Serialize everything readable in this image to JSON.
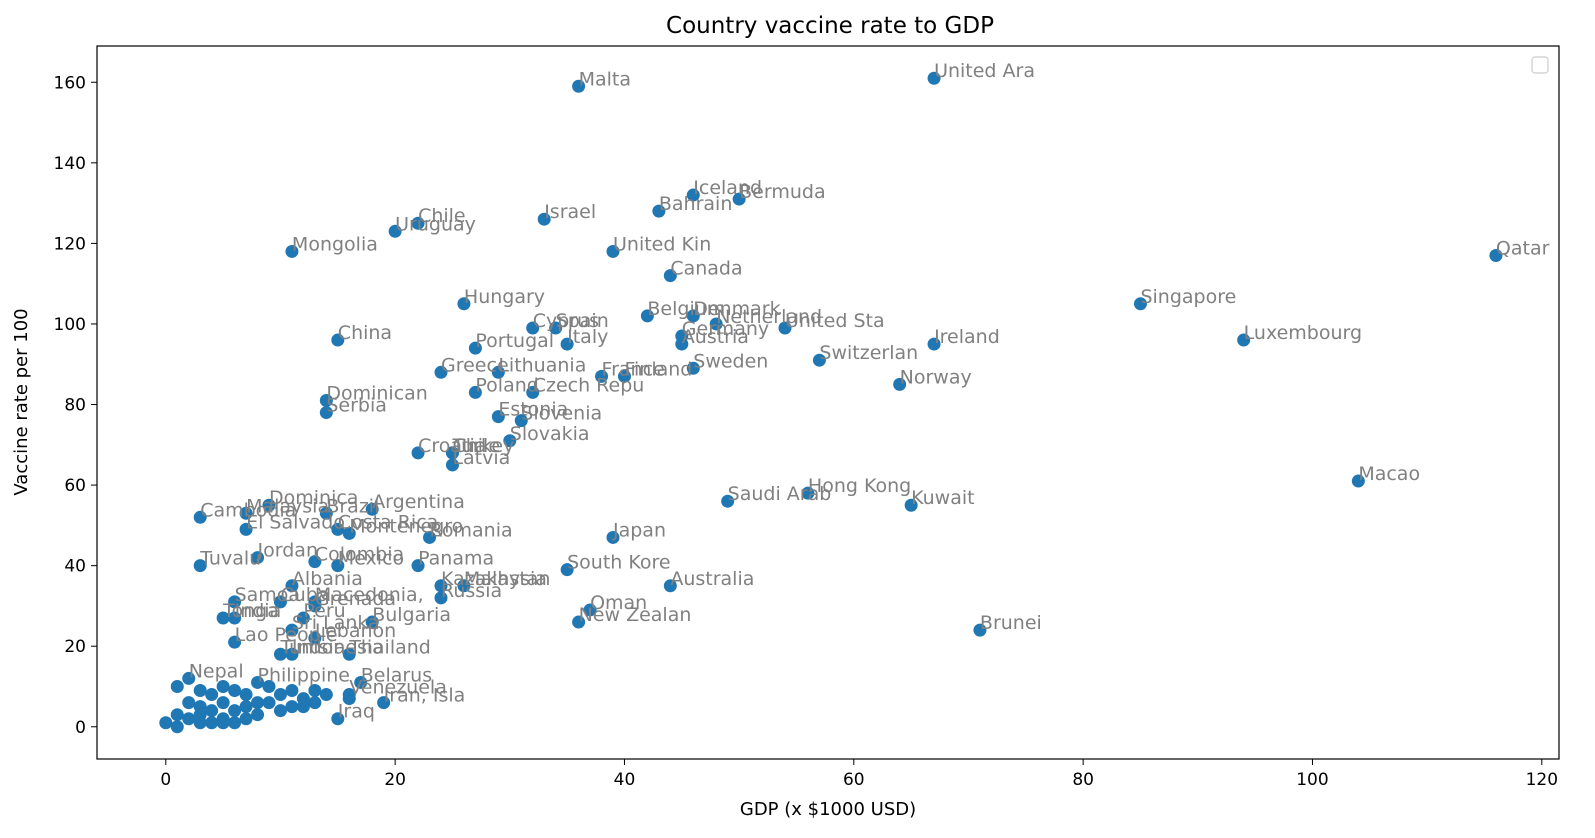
{
  "chart_data": {
    "type": "scatter",
    "title": "Country vaccine rate to GDP",
    "xlabel": "GDP (x $1000 USD)",
    "ylabel": "Vaccine rate per 100",
    "xlim": [
      -6,
      121.5
    ],
    "ylim": [
      -8,
      169
    ],
    "xticks": [
      0,
      20,
      40,
      60,
      80,
      100,
      120
    ],
    "yticks": [
      0,
      20,
      40,
      60,
      80,
      100,
      120,
      140,
      160
    ],
    "grid": false,
    "legend": "top-right, empty",
    "color": "#1f77b4",
    "label_color": "#808080",
    "points": [
      {
        "label": "Malta",
        "x": 36,
        "y": 159
      },
      {
        "label": "United Ara",
        "x": 67,
        "y": 161
      },
      {
        "label": "Iceland",
        "x": 46,
        "y": 132
      },
      {
        "label": "Bermuda",
        "x": 50,
        "y": 131
      },
      {
        "label": "Bahrain",
        "x": 43,
        "y": 128
      },
      {
        "label": "Israel",
        "x": 33,
        "y": 126
      },
      {
        "label": "Chile",
        "x": 22,
        "y": 125
      },
      {
        "label": "Uruguay",
        "x": 20,
        "y": 123
      },
      {
        "label": "Mongolia",
        "x": 11,
        "y": 118
      },
      {
        "label": "United Kin",
        "x": 39,
        "y": 118
      },
      {
        "label": "Qatar",
        "x": 116,
        "y": 117
      },
      {
        "label": "Canada",
        "x": 44,
        "y": 112
      },
      {
        "label": "Hungary",
        "x": 26,
        "y": 105
      },
      {
        "label": "Singapore",
        "x": 85,
        "y": 105
      },
      {
        "label": "Belgium",
        "x": 42,
        "y": 102
      },
      {
        "label": "Denmark",
        "x": 46,
        "y": 102
      },
      {
        "label": "Netherland",
        "x": 48,
        "y": 100
      },
      {
        "label": "United Sta",
        "x": 54,
        "y": 99
      },
      {
        "label": "Cyprus",
        "x": 32,
        "y": 99
      },
      {
        "label": "Spain",
        "x": 34,
        "y": 99
      },
      {
        "label": "Germany",
        "x": 45,
        "y": 97
      },
      {
        "label": "Luxembourg",
        "x": 94,
        "y": 96
      },
      {
        "label": "China",
        "x": 15,
        "y": 96
      },
      {
        "label": "Italy",
        "x": 35,
        "y": 95
      },
      {
        "label": "Austria",
        "x": 45,
        "y": 95
      },
      {
        "label": "Ireland",
        "x": 67,
        "y": 95
      },
      {
        "label": "Portugal",
        "x": 27,
        "y": 94
      },
      {
        "label": "Switzerlan",
        "x": 57,
        "y": 91
      },
      {
        "label": "Sweden",
        "x": 46,
        "y": 89
      },
      {
        "label": "Greece",
        "x": 24,
        "y": 88
      },
      {
        "label": "Lithuania",
        "x": 29,
        "y": 88
      },
      {
        "label": "France",
        "x": 38,
        "y": 87
      },
      {
        "label": "Finland",
        "x": 40,
        "y": 87
      },
      {
        "label": "Norway",
        "x": 64,
        "y": 85
      },
      {
        "label": "Poland",
        "x": 27,
        "y": 83
      },
      {
        "label": "Czech Repu",
        "x": 32,
        "y": 83
      },
      {
        "label": "Dominican",
        "x": 14,
        "y": 81
      },
      {
        "label": "Serbia",
        "x": 14,
        "y": 78
      },
      {
        "label": "Estonia",
        "x": 29,
        "y": 77
      },
      {
        "label": "Slovenia",
        "x": 31,
        "y": 76
      },
      {
        "label": "Slovakia",
        "x": 30,
        "y": 71
      },
      {
        "label": "Croatia",
        "x": 22,
        "y": 68
      },
      {
        "label": "Turkey",
        "x": 25,
        "y": 68
      },
      {
        "label": "Chile",
        "x": 25,
        "y": 68
      },
      {
        "label": "Latvia",
        "x": 25,
        "y": 65
      },
      {
        "label": "Macao",
        "x": 104,
        "y": 61
      },
      {
        "label": "Hong Kong",
        "x": 56,
        "y": 58
      },
      {
        "label": "Saudi Arab",
        "x": 49,
        "y": 56
      },
      {
        "label": "Kuwait",
        "x": 65,
        "y": 55
      },
      {
        "label": "Dominica",
        "x": 9,
        "y": 55
      },
      {
        "label": "Argentina",
        "x": 18,
        "y": 54
      },
      {
        "label": "Malaysia",
        "x": 7,
        "y": 53
      },
      {
        "label": "Brazil",
        "x": 14,
        "y": 53
      },
      {
        "label": "Cambodia",
        "x": 3,
        "y": 52
      },
      {
        "label": "El Salvado",
        "x": 7,
        "y": 49
      },
      {
        "label": "Costa Rica",
        "x": 15,
        "y": 49
      },
      {
        "label": "Montenegro",
        "x": 16,
        "y": 48
      },
      {
        "label": "Romania",
        "x": 23,
        "y": 47
      },
      {
        "label": "Japan",
        "x": 39,
        "y": 47
      },
      {
        "label": "Jordan",
        "x": 8,
        "y": 42
      },
      {
        "label": "Colombia",
        "x": 13,
        "y": 41
      },
      {
        "label": "Tuvalu",
        "x": 3,
        "y": 40
      },
      {
        "label": "Mexico",
        "x": 15,
        "y": 40
      },
      {
        "label": "Panama",
        "x": 22,
        "y": 40
      },
      {
        "label": "South Kore",
        "x": 35,
        "y": 39
      },
      {
        "label": "Malaysia",
        "x": 26,
        "y": 35
      },
      {
        "label": "Kazakhstan",
        "x": 24,
        "y": 35
      },
      {
        "label": "Australia",
        "x": 44,
        "y": 35
      },
      {
        "label": "Albania",
        "x": 11,
        "y": 35
      },
      {
        "label": "Samoa",
        "x": 6,
        "y": 31
      },
      {
        "label": "Macedonia,",
        "x": 13,
        "y": 31
      },
      {
        "label": "Russia",
        "x": 24,
        "y": 32
      },
      {
        "label": "Cuba",
        "x": 10,
        "y": 31
      },
      {
        "label": "Grenada",
        "x": 13,
        "y": 30
      },
      {
        "label": "Oman",
        "x": 37,
        "y": 29
      },
      {
        "label": "Tonga",
        "x": 5,
        "y": 27
      },
      {
        "label": "India",
        "x": 6,
        "y": 27
      },
      {
        "label": "Peru",
        "x": 12,
        "y": 27
      },
      {
        "label": "Bulgaria",
        "x": 18,
        "y": 26
      },
      {
        "label": "New Zealan",
        "x": 36,
        "y": 26
      },
      {
        "label": "Brunei",
        "x": 71,
        "y": 24
      },
      {
        "label": "Sri Lanka",
        "x": 11,
        "y": 24
      },
      {
        "label": "Lebanon",
        "x": 13,
        "y": 22
      },
      {
        "label": "Lao People",
        "x": 6,
        "y": 21
      },
      {
        "label": "Tunisia",
        "x": 10,
        "y": 18
      },
      {
        "label": "Indonesia",
        "x": 11,
        "y": 18
      },
      {
        "label": "Thailand",
        "x": 16,
        "y": 18
      },
      {
        "label": "Nepal",
        "x": 2,
        "y": 12
      },
      {
        "label": "Philippine",
        "x": 8,
        "y": 11
      },
      {
        "label": "Belarus",
        "x": 17,
        "y": 11
      },
      {
        "label": "Venezuela",
        "x": 16,
        "y": 8
      },
      {
        "label": "Iran, Isla",
        "x": 19,
        "y": 6
      },
      {
        "label": "Iraq",
        "x": 15,
        "y": 2
      },
      {
        "label": "",
        "x": 1,
        "y": 10
      },
      {
        "label": "",
        "x": 3,
        "y": 9
      },
      {
        "label": "",
        "x": 4,
        "y": 8
      },
      {
        "label": "",
        "x": 5,
        "y": 10
      },
      {
        "label": "",
        "x": 6,
        "y": 9
      },
      {
        "label": "",
        "x": 7,
        "y": 8
      },
      {
        "label": "",
        "x": 9,
        "y": 10
      },
      {
        "label": "",
        "x": 10,
        "y": 8
      },
      {
        "label": "",
        "x": 11,
        "y": 9
      },
      {
        "label": "",
        "x": 12,
        "y": 7
      },
      {
        "label": "",
        "x": 13,
        "y": 6
      },
      {
        "label": "",
        "x": 14,
        "y": 8
      },
      {
        "label": "",
        "x": 2,
        "y": 6
      },
      {
        "label": "",
        "x": 3,
        "y": 5
      },
      {
        "label": "",
        "x": 4,
        "y": 4
      },
      {
        "label": "",
        "x": 5,
        "y": 6
      },
      {
        "label": "",
        "x": 6,
        "y": 4
      },
      {
        "label": "",
        "x": 7,
        "y": 5
      },
      {
        "label": "",
        "x": 8,
        "y": 3
      },
      {
        "label": "",
        "x": 9,
        "y": 6
      },
      {
        "label": "",
        "x": 10,
        "y": 4
      },
      {
        "label": "",
        "x": 12,
        "y": 5
      },
      {
        "label": "",
        "x": 1,
        "y": 3
      },
      {
        "label": "",
        "x": 2,
        "y": 2
      },
      {
        "label": "",
        "x": 3,
        "y": 3
      },
      {
        "label": "",
        "x": 4,
        "y": 1
      },
      {
        "label": "",
        "x": 5,
        "y": 2
      },
      {
        "label": "",
        "x": 6,
        "y": 1
      },
      {
        "label": "",
        "x": 7,
        "y": 2
      },
      {
        "label": "",
        "x": 0,
        "y": 1
      },
      {
        "label": "",
        "x": 1,
        "y": 0
      },
      {
        "label": "",
        "x": 3,
        "y": 1
      },
      {
        "label": "",
        "x": 5,
        "y": 1
      },
      {
        "label": "",
        "x": 8,
        "y": 6
      },
      {
        "label": "",
        "x": 11,
        "y": 5
      },
      {
        "label": "",
        "x": 13,
        "y": 9
      },
      {
        "label": "",
        "x": 16,
        "y": 7
      }
    ]
  }
}
